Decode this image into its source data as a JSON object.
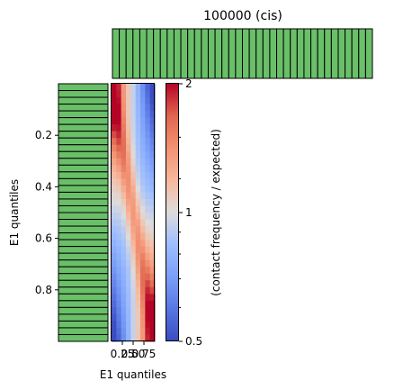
{
  "chart_data": {
    "type": "heatmap",
    "title": "100000 (cis)",
    "xlabel": "E1 quantiles",
    "ylabel": "E1 quantiles",
    "colorbar_label": "(contact frequency / expected)",
    "colormap": "coolwarm",
    "colorbar_scale": "log",
    "colorbar_range": [
      0.5,
      2
    ],
    "colorbar_ticks": [
      0.5,
      1,
      2
    ],
    "colorbar_tick_labels": [
      "0.5",
      "1",
      "2"
    ],
    "x_range": [
      0,
      1
    ],
    "y_range": [
      0,
      1
    ],
    "x_ticks": [
      0.25,
      0.5,
      0.75
    ],
    "x_tick_labels": [
      "0.25",
      "0.50",
      "0.75"
    ],
    "y_ticks": [
      0.2,
      0.4,
      0.6,
      0.8
    ],
    "y_tick_labels": [
      "0.2",
      "0.4",
      "0.6",
      "0.8"
    ],
    "bins": 38,
    "heatmap_columns": 9,
    "histogram_color": "#6abf69",
    "heatmap_pattern": "saddle: high in top-left and bottom-right corners, low in top-right and bottom-left, diagonal band near 1"
  }
}
